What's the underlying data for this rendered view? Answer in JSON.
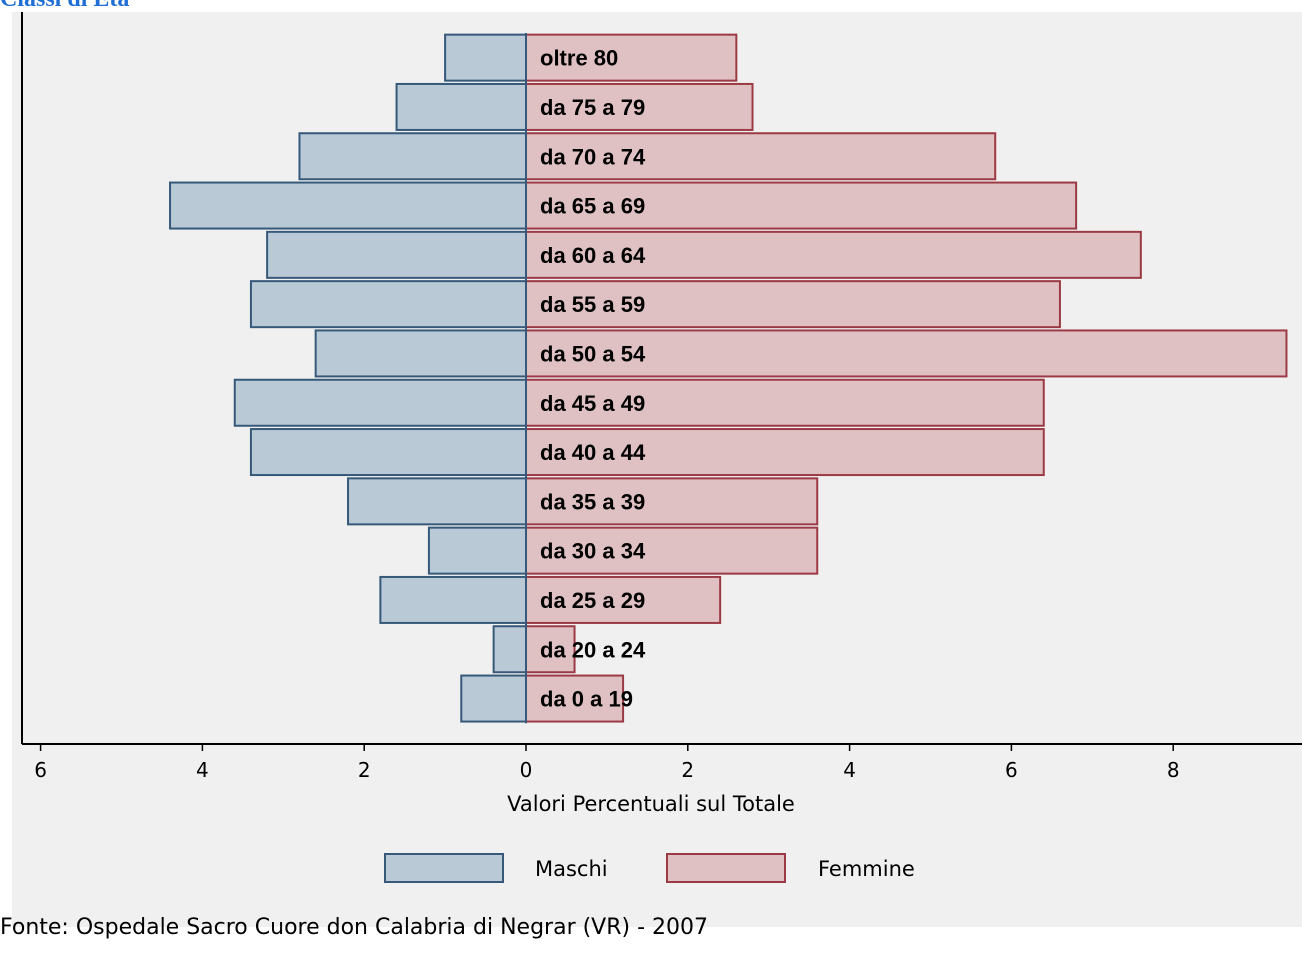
{
  "chart_data": {
    "type": "bar",
    "title": "Classi di Età",
    "xlabel": "Valori Percentuali sul Totale",
    "source": "Fonte: Ospedale Sacro Cuore don Calabria di Negrar (VR) - 2007",
    "categories": [
      "oltre 80",
      "da 75 a 79",
      "da 70 a 74",
      "da 65 a 69",
      "da 60 a 64",
      "da 55 a 59",
      "da 50 a 54",
      "da 45 a 49",
      "da 40 a 44",
      "da 35 a 39",
      "da 30 a 34",
      "da 25 a 29",
      "da 20 a 24",
      "da 0 a 19"
    ],
    "series": [
      {
        "name": "Maschi",
        "values": [
          1.0,
          1.6,
          2.8,
          4.4,
          3.2,
          3.4,
          2.6,
          3.6,
          3.4,
          2.2,
          1.2,
          1.8,
          0.4,
          0.8
        ],
        "fill": "#b9c9d6",
        "stroke": "#36597a"
      },
      {
        "name": "Femmine",
        "values": [
          2.6,
          2.8,
          5.8,
          6.8,
          7.6,
          6.6,
          9.4,
          6.4,
          6.4,
          3.6,
          3.6,
          2.4,
          0.6,
          1.2
        ],
        "fill": "#dfc0c3",
        "stroke": "#9b3a44"
      }
    ],
    "x_ticks": [
      "6",
      "4",
      "2",
      "0",
      "2",
      "4",
      "6",
      "8"
    ],
    "xlim": [
      -6,
      9.4
    ],
    "grid": false,
    "legend_position": "bottom"
  },
  "colors": {
    "title": "#1f6fd6",
    "background": "#f0f0f0"
  }
}
